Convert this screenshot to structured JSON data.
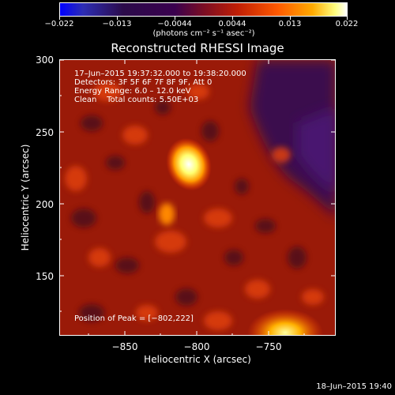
{
  "colorbar": {
    "tick_labels": [
      "−0.022",
      "−0.013",
      "−0.0044",
      "0.0044",
      "0.013",
      "0.022"
    ],
    "units_label": "(photons cm⁻² s⁻¹ asec⁻²)"
  },
  "title": "Reconstructed RHESSI Image",
  "info": {
    "time_range": "17–Jun–2015 19:37:32.000 to 19:38:20.000",
    "detectors": "Detectors: 3F 5F 6F 7F 8F 9F, Att 0",
    "energy_range": "Energy Range: 6.0 – 12.0 keV",
    "clean_counts": "Clean    Total counts: 5.50E+03",
    "peak_position": "Position of Peak = [−802,222]"
  },
  "axes": {
    "ylabel": "Heliocentric Y (arcsec)",
    "xlabel": "Heliocentric X (arcsec)",
    "y_ticks": [
      "300",
      "250",
      "200",
      "150"
    ],
    "x_ticks": [
      "−850",
      "−800",
      "−750"
    ]
  },
  "timestamp": "18–Jun–2015 19:40"
}
